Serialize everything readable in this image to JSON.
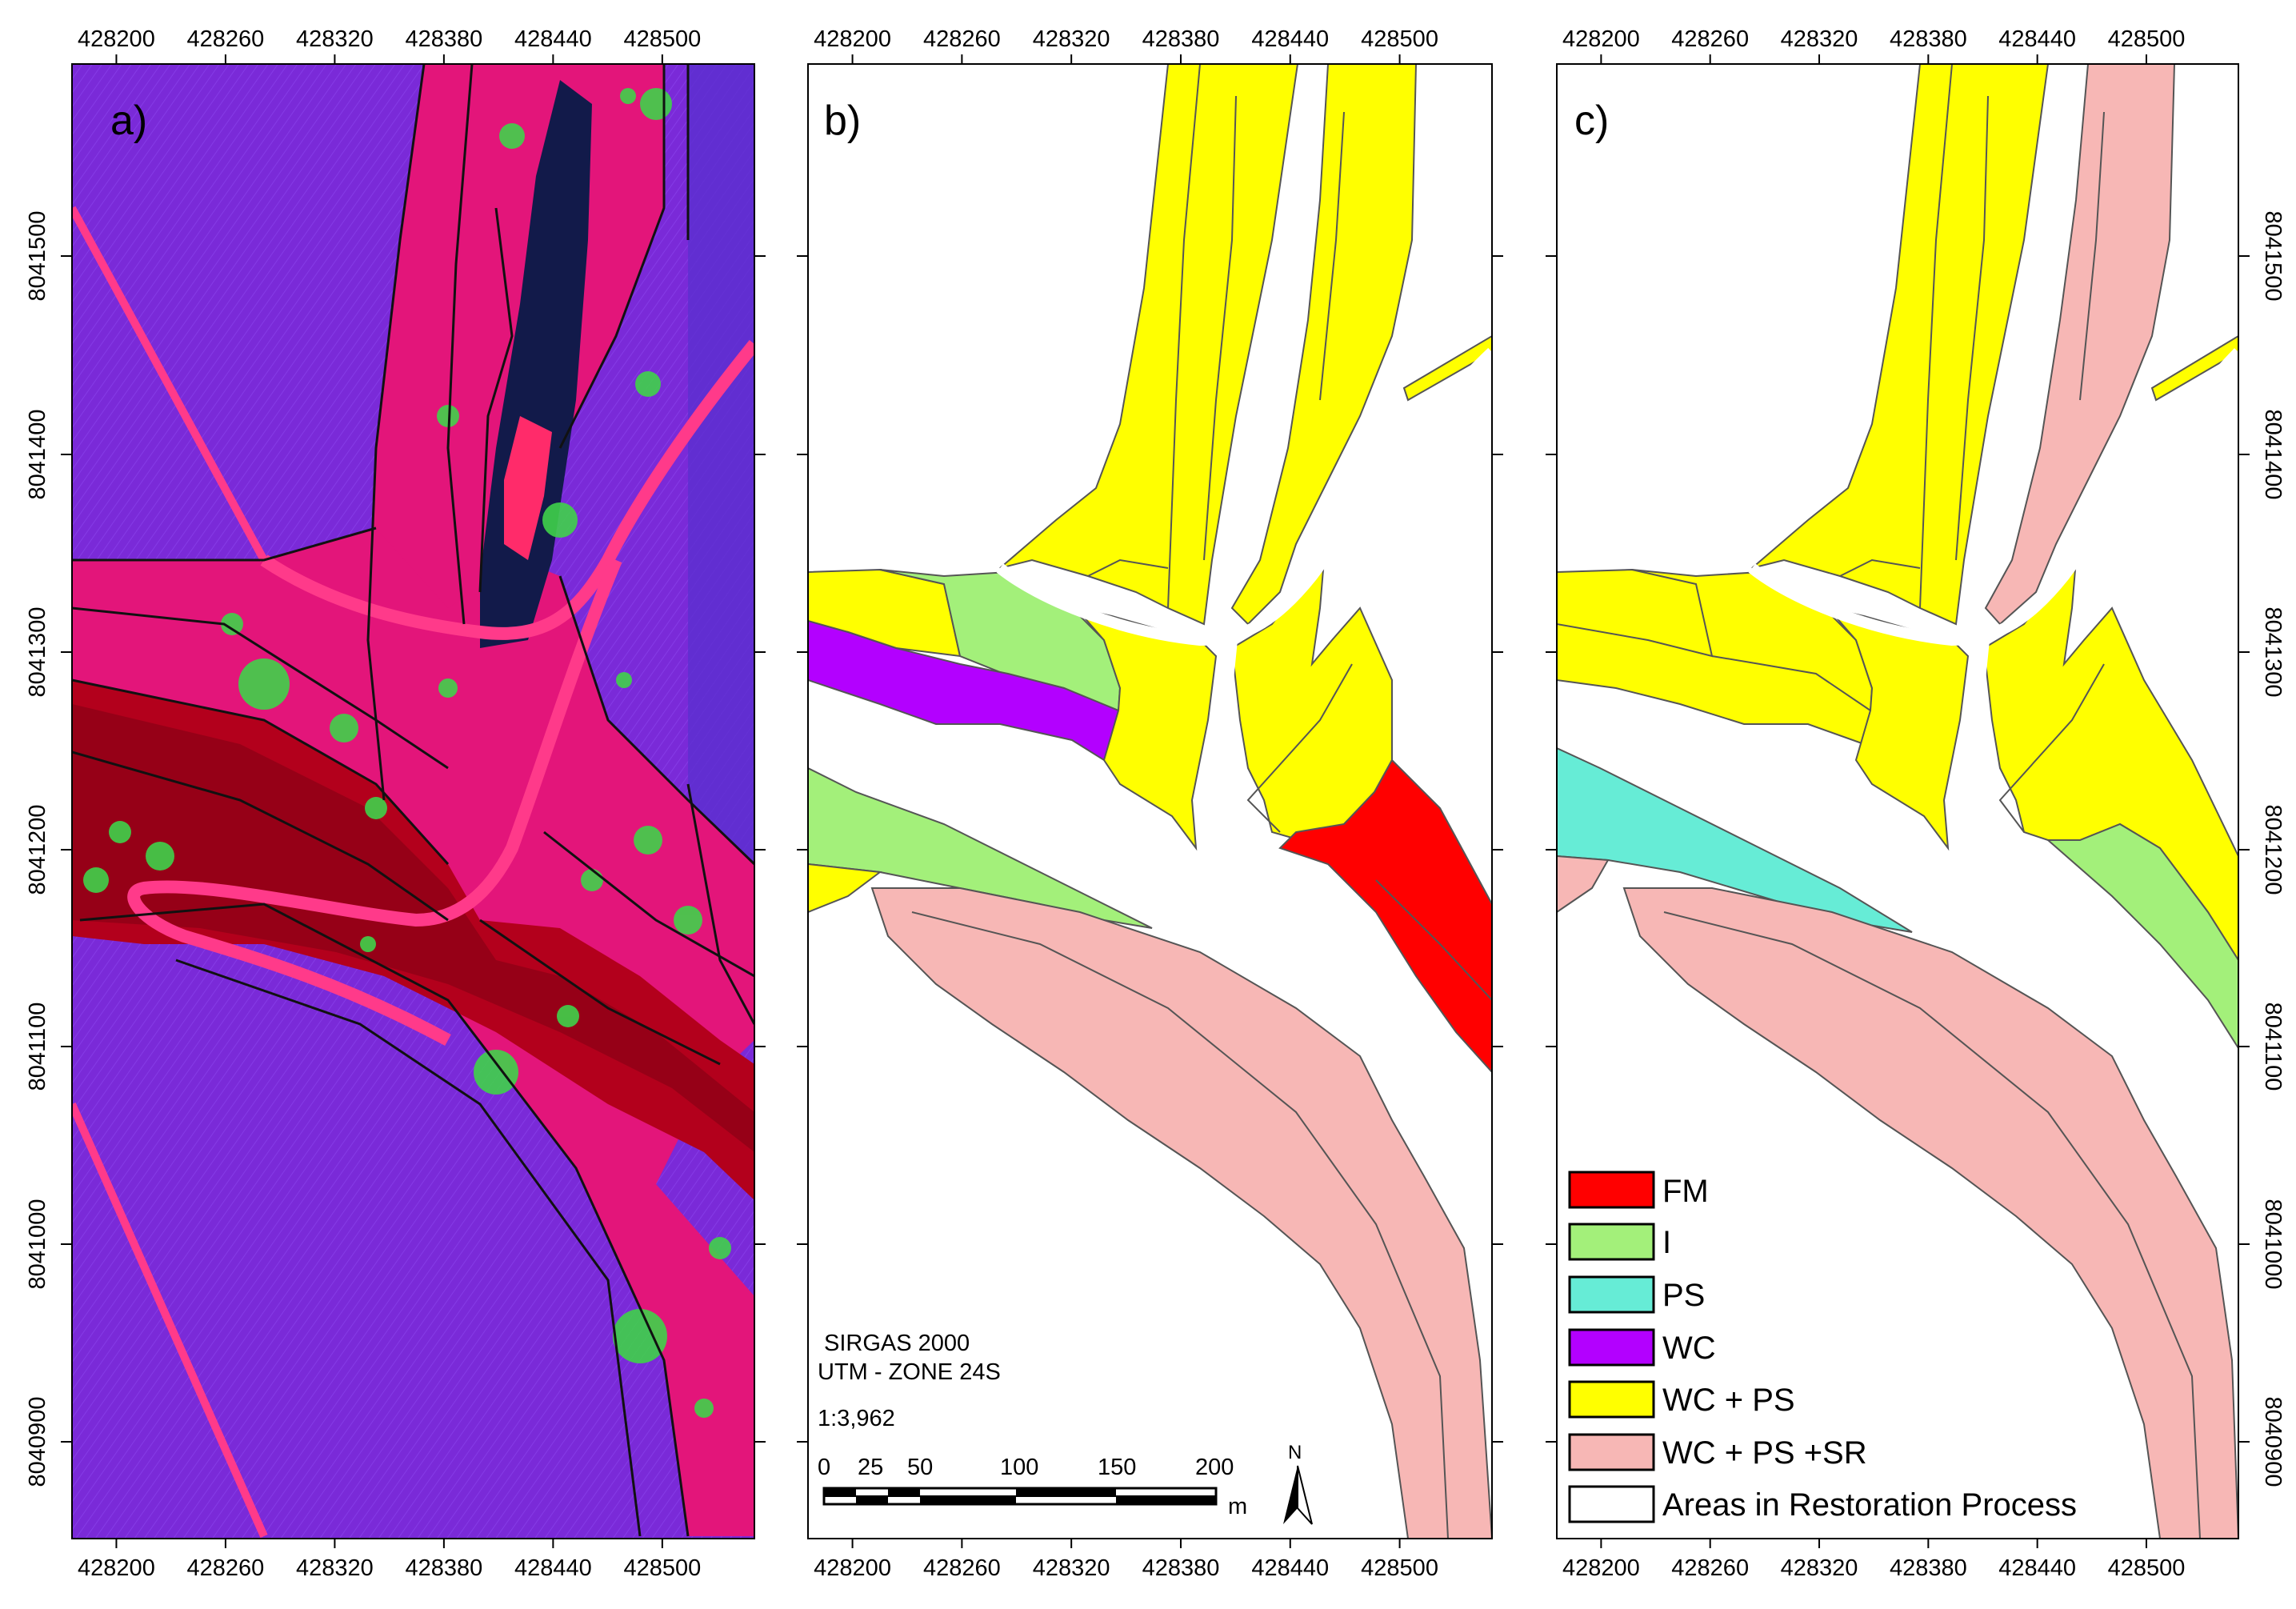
{
  "panels": [
    {
      "id": "a",
      "label": "a)"
    },
    {
      "id": "b",
      "label": "b)"
    },
    {
      "id": "c",
      "label": "c)"
    }
  ],
  "x_ticks": [
    "428200",
    "428260",
    "428320",
    "428380",
    "428440",
    "428500"
  ],
  "y_ticks": [
    "8041500",
    "8041400",
    "8041300",
    "8041200",
    "8041100",
    "8041000",
    "8040900"
  ],
  "map_info": {
    "datum": "SIRGAS 2000",
    "projection": "UTM - ZONE 24S",
    "scale": "1:3,962",
    "scalebar_ticks": [
      "0",
      "25",
      "50",
      "100",
      "150",
      "200"
    ],
    "scalebar_unit": "m",
    "north": "N"
  },
  "legend": [
    {
      "label": "FM",
      "color": "#ff0000"
    },
    {
      "label": "I",
      "color": "#a3f07a"
    },
    {
      "label": "PS",
      "color": "#66ecd6"
    },
    {
      "label": "WC",
      "color": "#b300ff"
    },
    {
      "label": "WC + PS",
      "color": "#ffff00"
    },
    {
      "label": "WC + PS +SR",
      "color": "#f7b7b5"
    },
    {
      "label": "Areas in Restoration Process",
      "color": "#ffffff"
    }
  ],
  "colors": {
    "fm": "#ff0000",
    "i": "#a3f07a",
    "ps": "#66ecd6",
    "wc": "#b300ff",
    "wc_ps": "#ffff00",
    "wc_ps_sr": "#f7b7b5",
    "restoration": "#ffffff",
    "imagery_purple": "#7a2ad8",
    "imagery_magenta": "#e3157a",
    "imagery_red": "#b3001c",
    "imagery_water": "#121a4a",
    "imagery_tree": "#3fd24a"
  }
}
